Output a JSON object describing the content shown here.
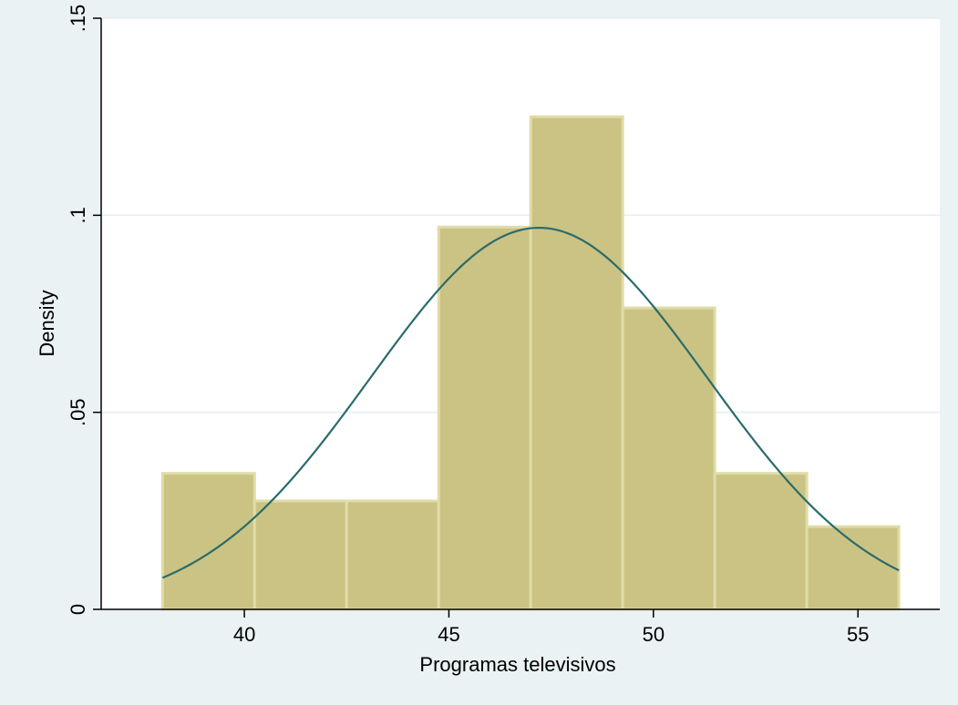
{
  "chart_data": {
    "type": "bar",
    "subtype": "histogram-with-normal-density",
    "title": "",
    "xlabel": "Programas televisivos",
    "ylabel": "Density",
    "xlim": [
      36.5,
      57
    ],
    "ylim": [
      0,
      0.15
    ],
    "x_ticks": [
      40,
      45,
      50,
      55
    ],
    "x_tick_labels": [
      "40",
      "45",
      "50",
      "55"
    ],
    "y_ticks": [
      0,
      0.05,
      0.1,
      0.15
    ],
    "y_tick_labels": [
      "0",
      ".05",
      ".1",
      ".15"
    ],
    "grid": "horizontal",
    "legend": "none",
    "bins": [
      {
        "start": 38.0,
        "end": 40.25,
        "density": 0.0345
      },
      {
        "start": 40.25,
        "end": 42.5,
        "density": 0.0275
      },
      {
        "start": 42.5,
        "end": 44.75,
        "density": 0.0275
      },
      {
        "start": 44.75,
        "end": 47.0,
        "density": 0.097
      },
      {
        "start": 47.0,
        "end": 49.25,
        "density": 0.125
      },
      {
        "start": 49.25,
        "end": 51.5,
        "density": 0.0765
      },
      {
        "start": 51.5,
        "end": 53.75,
        "density": 0.0345
      },
      {
        "start": 53.75,
        "end": 56.0,
        "density": 0.021
      }
    ],
    "normal_curve": {
      "mean": 47.2,
      "sd": 4.12,
      "x_range": [
        38,
        56
      ]
    },
    "colors": {
      "background": "#eaf2f3",
      "plot_area": "#ffffff",
      "bar_fill": "#cbc383",
      "bar_edge": "#e0dca8",
      "curve": "#2a6b6b",
      "grid": "#e8eeee"
    }
  }
}
